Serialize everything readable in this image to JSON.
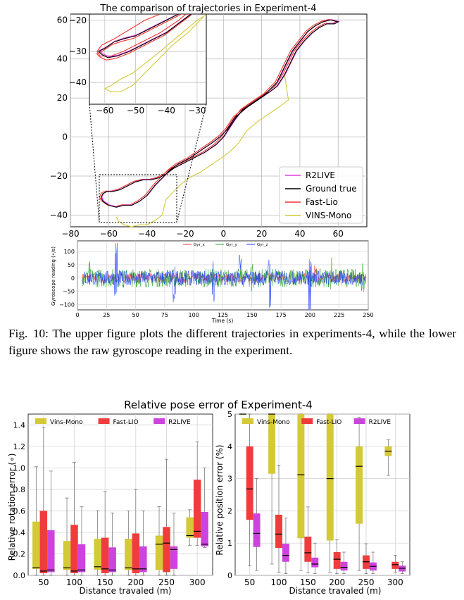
{
  "figure_top": {
    "title": "The comparison of trajectories in Experiment-4",
    "xticks": [
      -80,
      -60,
      -40,
      -20,
      0,
      20,
      40,
      60
    ],
    "yticks": [
      -40,
      -20,
      0,
      20,
      40,
      60
    ],
    "inset_xticks": [
      -60,
      -50,
      -40,
      -30
    ],
    "inset_yticks": [
      -20,
      -30,
      -40
    ],
    "legend": [
      {
        "label": "R2LIVE",
        "color": "#e040e0"
      },
      {
        "label": "Ground true",
        "color": "#000000"
      },
      {
        "label": "Fast-Lio",
        "color": "#ee3333"
      },
      {
        "label": "VINS-Mono",
        "color": "#d4c936"
      }
    ]
  },
  "figure_gyro": {
    "legend": [
      {
        "label": "Gyr_x",
        "color": "#ee3333"
      },
      {
        "label": "Gyr_y",
        "color": "#2ca02c"
      },
      {
        "label": "Gyr_z",
        "color": "#1f3fff"
      }
    ],
    "ylabel": "Gyroscope reading (∘/s)",
    "xlabel": "Time (s)",
    "xticks": [
      0,
      25,
      50,
      75,
      100,
      125,
      150,
      175,
      200,
      225,
      250
    ],
    "yticks": [
      100,
      50,
      0,
      -50,
      -100
    ]
  },
  "caption": {
    "label": "Fig. 10:",
    "text": "The upper figure plots the different trajectories in experiments-4, while the lower figure shows the raw gyroscope reading in the experiment."
  },
  "figure_rpe": {
    "title": "Relative pose error of Experiment-4",
    "legend": [
      {
        "label": "Vins-Mono",
        "color": "#d4c936"
      },
      {
        "label": "Fast-LIO",
        "color": "#f03c3c"
      },
      {
        "label": "R2LIVE",
        "color": "#cc44dd"
      }
    ],
    "left_ylabel": "Relative rotation error (∘)",
    "right_ylabel": "Relative position error (%)",
    "xlabel": "Distance travaled (m)",
    "left_yticks": [
      "0.0",
      "0.2",
      "0.4",
      "0.6",
      "0.8",
      "1.0",
      "1.2",
      "1.4"
    ],
    "right_yticks": [
      "0",
      "1",
      "2",
      "3",
      "4",
      "5"
    ]
  },
  "chart_data": [
    {
      "type": "line",
      "title": "The comparison of trajectories in Experiment-4",
      "xlim": [
        -80,
        75
      ],
      "ylim": [
        -46,
        63
      ],
      "series": [
        {
          "name": "R2LIVE",
          "color": "#e040e0"
        },
        {
          "name": "Ground true",
          "color": "#000000"
        },
        {
          "name": "Fast-Lio",
          "color": "#ee3333"
        },
        {
          "name": "VINS-Mono",
          "color": "#d4c936"
        }
      ]
    },
    {
      "type": "line",
      "xlabel": "Time (s)",
      "ylabel": "Gyroscope reading (∘/s)",
      "xlim": [
        0,
        250
      ],
      "ylim": [
        -120,
        140
      ],
      "series": [
        {
          "name": "Gyr_x",
          "color": "#ee3333"
        },
        {
          "name": "Gyr_y",
          "color": "#2ca02c"
        },
        {
          "name": "Gyr_z",
          "color": "#1f3fff"
        }
      ]
    },
    {
      "type": "box",
      "title": "Relative pose error of Experiment-4",
      "xlabel": "Distance travaled (m)",
      "ylabel": "Relative rotation error (∘)",
      "categories": [
        "50",
        "100",
        "150",
        "200",
        "250",
        "300"
      ],
      "ylim": [
        0,
        1.5
      ],
      "series": [
        {
          "name": "Vins-Mono",
          "color": "#d4c936",
          "boxes": [
            {
              "q1": 0.06,
              "med": 0.07,
              "q3": 0.5,
              "lo": 0.0,
              "hi": 1.01
            },
            {
              "q1": 0.05,
              "med": 0.07,
              "q3": 0.32,
              "lo": 0.0,
              "hi": 0.72
            },
            {
              "q1": 0.05,
              "med": 0.08,
              "q3": 0.34,
              "lo": 0.0,
              "hi": 0.6
            },
            {
              "q1": 0.05,
              "med": 0.07,
              "q3": 0.34,
              "lo": 0.0,
              "hi": 0.6
            },
            {
              "q1": 0.05,
              "med": 0.29,
              "q3": 0.37,
              "lo": 0.0,
              "hi": 0.64
            },
            {
              "q1": 0.35,
              "med": 0.37,
              "q3": 0.54,
              "lo": 0.28,
              "hi": 0.61
            }
          ]
        },
        {
          "name": "Fast-LIO",
          "color": "#f03c3c",
          "boxes": [
            {
              "q1": 0.02,
              "med": 0.04,
              "q3": 0.6,
              "lo": 0.0,
              "hi": 1.38
            },
            {
              "q1": 0.02,
              "med": 0.04,
              "q3": 0.47,
              "lo": 0.0,
              "hi": 1.05
            },
            {
              "q1": 0.02,
              "med": 0.06,
              "q3": 0.35,
              "lo": 0.0,
              "hi": 0.78
            },
            {
              "q1": 0.02,
              "med": 0.06,
              "q3": 0.39,
              "lo": 0.0,
              "hi": 0.8
            },
            {
              "q1": 0.03,
              "med": 0.3,
              "q3": 0.45,
              "lo": 0.0,
              "hi": 1.08
            },
            {
              "q1": 0.35,
              "med": 0.41,
              "q3": 0.89,
              "lo": 0.28,
              "hi": 1.24
            }
          ]
        },
        {
          "name": "R2LIVE",
          "color": "#cc44dd",
          "boxes": [
            {
              "q1": 0.03,
              "med": 0.05,
              "q3": 0.42,
              "lo": 0.0,
              "hi": 0.97
            },
            {
              "q1": 0.03,
              "med": 0.05,
              "q3": 0.29,
              "lo": 0.0,
              "hi": 0.64
            },
            {
              "q1": 0.03,
              "med": 0.05,
              "q3": 0.26,
              "lo": 0.0,
              "hi": 0.58
            },
            {
              "q1": 0.03,
              "med": 0.06,
              "q3": 0.27,
              "lo": 0.0,
              "hi": 0.6
            },
            {
              "q1": 0.06,
              "med": 0.24,
              "q3": 0.27,
              "lo": 0.0,
              "hi": 0.58
            },
            {
              "q1": 0.27,
              "med": 0.29,
              "q3": 0.59,
              "lo": 0.26,
              "hi": 1.0
            }
          ]
        }
      ]
    },
    {
      "type": "box",
      "xlabel": "Distance travaled (m)",
      "ylabel": "Relative position error (%)",
      "categories": [
        "50",
        "100",
        "150",
        "200",
        "250",
        "300"
      ],
      "ylim": [
        0,
        5
      ],
      "series": [
        {
          "name": "Vins-Mono",
          "color": "#d4c936",
          "boxes": [
            {
              "q1": 5.0,
              "med": 5.0,
              "q3": 5.0,
              "lo": 5.0,
              "hi": 5.0
            },
            {
              "q1": 3.15,
              "med": 5.0,
              "q3": 5.0,
              "lo": 0.35,
              "hi": 5.0
            },
            {
              "q1": 1.15,
              "med": 3.12,
              "q3": 5.0,
              "lo": 0.15,
              "hi": 5.0
            },
            {
              "q1": 1.08,
              "med": 3.0,
              "q3": 5.0,
              "lo": 0.1,
              "hi": 5.0
            },
            {
              "q1": 1.6,
              "med": 3.38,
              "q3": 4.0,
              "lo": 0.15,
              "hi": 4.9
            },
            {
              "q1": 3.7,
              "med": 3.85,
              "q3": 4.0,
              "lo": 3.1,
              "hi": 4.2
            }
          ]
        },
        {
          "name": "Fast-LIO",
          "color": "#f03c3c",
          "boxes": [
            {
              "q1": 1.72,
              "med": 2.68,
              "q3": 4.0,
              "lo": 0.3,
              "hi": 5.0
            },
            {
              "q1": 0.85,
              "med": 1.28,
              "q3": 1.88,
              "lo": 0.1,
              "hi": 3.42
            },
            {
              "q1": 0.42,
              "med": 0.7,
              "q3": 1.2,
              "lo": 0.08,
              "hi": 2.12
            },
            {
              "q1": 0.2,
              "med": 0.5,
              "q3": 0.72,
              "lo": 0.05,
              "hi": 1.1
            },
            {
              "q1": 0.2,
              "med": 0.42,
              "q3": 0.62,
              "lo": 0.05,
              "hi": 0.98
            },
            {
              "q1": 0.2,
              "med": 0.33,
              "q3": 0.42,
              "lo": 0.1,
              "hi": 0.62
            }
          ]
        },
        {
          "name": "R2LIVE",
          "color": "#cc44dd",
          "boxes": [
            {
              "q1": 0.88,
              "med": 1.3,
              "q3": 1.92,
              "lo": 0.15,
              "hi": 3.0
            },
            {
              "q1": 0.42,
              "med": 0.62,
              "q3": 0.98,
              "lo": 0.05,
              "hi": 1.78
            },
            {
              "q1": 0.25,
              "med": 0.35,
              "q3": 0.55,
              "lo": 0.05,
              "hi": 1.0
            },
            {
              "q1": 0.15,
              "med": 0.25,
              "q3": 0.42,
              "lo": 0.05,
              "hi": 0.72
            },
            {
              "q1": 0.15,
              "med": 0.28,
              "q3": 0.4,
              "lo": 0.05,
              "hi": 0.72
            },
            {
              "q1": 0.12,
              "med": 0.22,
              "q3": 0.3,
              "lo": 0.05,
              "hi": 0.42
            }
          ]
        }
      ]
    }
  ]
}
